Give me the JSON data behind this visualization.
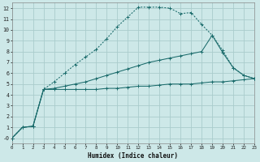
{
  "xlabel": "Humidex (Indice chaleur)",
  "bg_color": "#cde8e8",
  "grid_color": "#aacccc",
  "line_color": "#1a6b6b",
  "xlim": [
    0,
    23
  ],
  "ylim": [
    -0.5,
    12.5
  ],
  "xticks": [
    0,
    1,
    2,
    3,
    4,
    5,
    6,
    7,
    8,
    9,
    10,
    11,
    12,
    13,
    14,
    15,
    16,
    17,
    18,
    19,
    20,
    21,
    22,
    23
  ],
  "yticks": [
    0,
    1,
    2,
    3,
    4,
    5,
    6,
    7,
    8,
    9,
    10,
    11,
    12
  ],
  "c1x": [
    0,
    1,
    2,
    3,
    4,
    5,
    6,
    7,
    8,
    9,
    10,
    11,
    12,
    13,
    14,
    15,
    16,
    17,
    18,
    19,
    20,
    21,
    22,
    23
  ],
  "c1y": [
    0.0,
    1.0,
    1.1,
    4.5,
    4.5,
    4.5,
    4.5,
    4.5,
    4.5,
    4.6,
    4.6,
    4.7,
    4.8,
    4.8,
    4.9,
    5.0,
    5.0,
    5.0,
    5.1,
    5.2,
    5.2,
    5.3,
    5.4,
    5.5
  ],
  "c2x": [
    0,
    1,
    2,
    3,
    4,
    5,
    6,
    7,
    8,
    9,
    10,
    11,
    12,
    13,
    14,
    15,
    16,
    17,
    18,
    19,
    20,
    21,
    22,
    23
  ],
  "c2y": [
    0.0,
    1.0,
    1.1,
    4.5,
    4.6,
    4.8,
    5.0,
    5.2,
    5.5,
    5.8,
    6.1,
    6.4,
    6.7,
    7.0,
    7.2,
    7.4,
    7.6,
    7.8,
    8.0,
    9.5,
    7.9,
    6.5,
    5.8,
    5.5
  ],
  "c3x": [
    0,
    1,
    2,
    3,
    4,
    5,
    6,
    7,
    8,
    9,
    10,
    11,
    12,
    13,
    14,
    15,
    16,
    17,
    18,
    19,
    20,
    21,
    22,
    23
  ],
  "c3y": [
    0.0,
    1.0,
    1.1,
    4.5,
    5.2,
    6.0,
    6.8,
    7.5,
    8.2,
    9.2,
    10.3,
    11.2,
    12.1,
    12.1,
    12.1,
    12.0,
    11.5,
    11.6,
    10.5,
    9.5,
    8.1,
    6.5,
    5.8,
    5.5
  ]
}
